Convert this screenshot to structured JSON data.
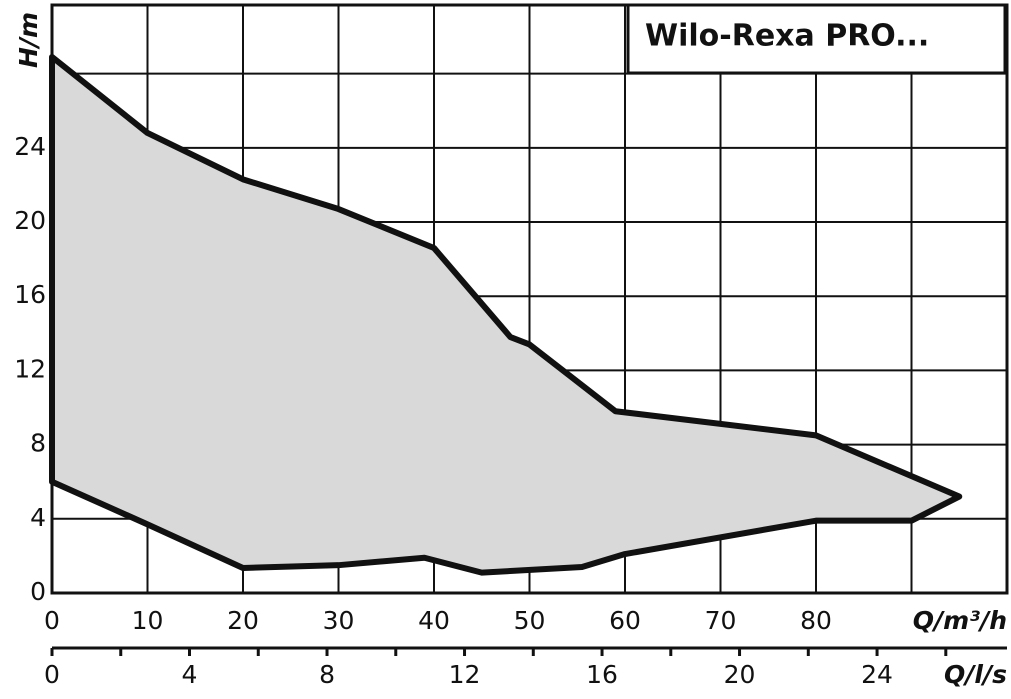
{
  "chart_data": {
    "type": "area",
    "title": "Wilo-Rexa PRO...",
    "x_label": "Q/m³/h",
    "x2_label": "Q/l/s",
    "y_label": "H/m",
    "x": [
      0,
      10,
      20,
      30,
      40,
      48,
      50,
      59,
      80,
      95,
      90,
      80,
      60,
      55.5,
      45,
      39,
      30,
      20,
      10,
      0
    ],
    "values": [
      28.9,
      24.8,
      22.3,
      20.7,
      18.6,
      13.8,
      13.4,
      9.8,
      8.5,
      5.2,
      3.9,
      3.9,
      2.1,
      1.4,
      1.1,
      1.9,
      1.5,
      1.35,
      3.7,
      6.0
    ],
    "color": "#d9d9d9",
    "xlim": [
      0,
      100
    ],
    "xticks": [
      0,
      10,
      20,
      30,
      40,
      50,
      60,
      70,
      80,
      {
        "value": 90,
        "label": null
      }
    ],
    "ylim": [
      0,
      31.7
    ],
    "yticks": [
      0,
      4,
      8,
      12,
      16,
      20,
      24,
      {
        "value": 28,
        "label": null
      }
    ],
    "x2lim": [
      0,
      27.78
    ],
    "x2ticks": [
      0,
      {
        "value": 2,
        "label": null
      },
      4,
      {
        "value": 6,
        "label": null
      },
      8,
      {
        "value": 10,
        "label": null
      },
      12,
      {
        "value": 14,
        "label": null
      },
      16,
      {
        "value": 18,
        "label": null
      },
      20,
      {
        "value": 22,
        "label": null
      },
      24,
      {
        "value": 26,
        "label": null
      }
    ],
    "grid": true
  }
}
